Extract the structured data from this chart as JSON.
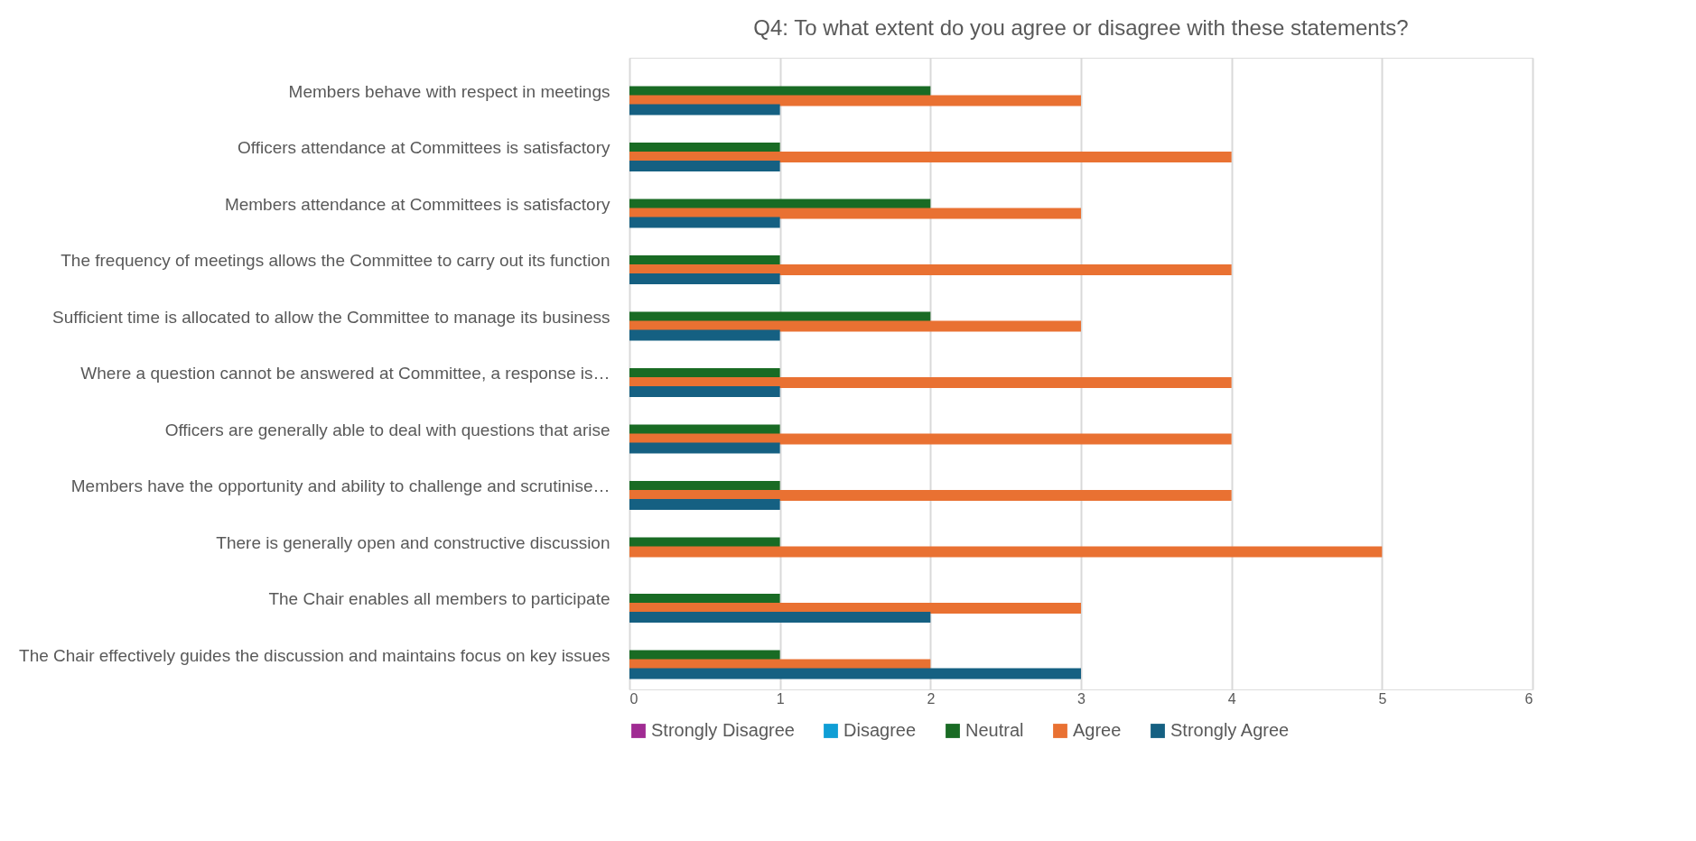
{
  "chart_data": {
    "type": "bar",
    "orientation": "horizontal",
    "title": "Q4: To what extent do you agree or disagree with these statements?",
    "categories": [
      "Members behave with respect in meetings",
      "Officers attendance at Committees is satisfactory",
      "Members attendance at Committees is satisfactory",
      "The frequency of meetings allows the Committee to carry out its function",
      "Sufficient time is allocated to allow the Committee to manage its business",
      "Where a question cannot be answered at Committee, a response is…",
      "Officers are generally able to deal with questions that arise",
      "Members have the opportunity and ability to challenge and scrutinise…",
      "There is generally open and constructive discussion",
      "The Chair enables all members to participate",
      "The Chair effectively guides the discussion and maintains focus on key issues"
    ],
    "series": [
      {
        "name": "Strongly Disagree",
        "color": "#a02b93",
        "values": [
          0,
          0,
          0,
          0,
          0,
          0,
          0,
          0,
          0,
          0,
          0
        ]
      },
      {
        "name": "Disagree",
        "color": "#0f9ed5",
        "values": [
          0,
          0,
          0,
          0,
          0,
          0,
          0,
          0,
          0,
          0,
          0
        ]
      },
      {
        "name": "Neutral",
        "color": "#196b24",
        "values": [
          2,
          1,
          2,
          1,
          2,
          1,
          1,
          1,
          1,
          1,
          1
        ]
      },
      {
        "name": "Agree",
        "color": "#e97132",
        "values": [
          3,
          4,
          3,
          4,
          3,
          4,
          4,
          4,
          5,
          3,
          2
        ]
      },
      {
        "name": "Strongly Agree",
        "color": "#156082",
        "values": [
          1,
          1,
          1,
          1,
          1,
          1,
          1,
          1,
          0,
          2,
          3
        ]
      }
    ],
    "xlim": [
      0,
      6
    ],
    "xticks": [
      0,
      1,
      2,
      3,
      4,
      5,
      6
    ],
    "grid": "x",
    "legend": "bottom"
  }
}
